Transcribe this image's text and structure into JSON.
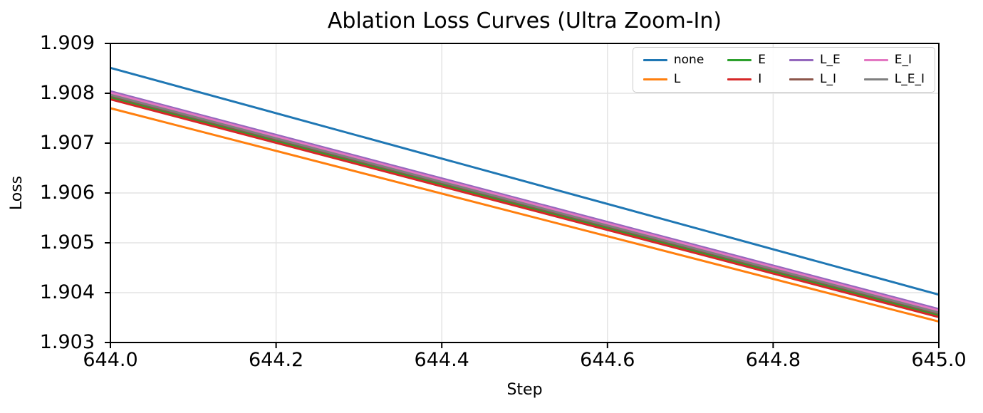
{
  "chart_data": {
    "type": "line",
    "title": "Ablation Loss Curves (Ultra Zoom-In)",
    "xlabel": "Step",
    "ylabel": "Loss",
    "xlim": [
      644.0,
      645.0
    ],
    "ylim": [
      1.903,
      1.909
    ],
    "x_ticks": [
      "644.0",
      "644.2",
      "644.4",
      "644.6",
      "644.8",
      "645.0"
    ],
    "y_ticks": [
      "1.903",
      "1.904",
      "1.905",
      "1.906",
      "1.907",
      "1.908",
      "1.909"
    ],
    "grid": true,
    "grid_color": "#e4e4e4",
    "spine_color": "#000000",
    "legend_position": "upper right",
    "legend_ncol": 4,
    "x": [
      644.0,
      645.0
    ],
    "series": [
      {
        "name": "none",
        "color": "#1f77b4",
        "values": [
          1.90851,
          1.90396
        ]
      },
      {
        "name": "L",
        "color": "#ff7f0e",
        "values": [
          1.9077,
          1.90342
        ]
      },
      {
        "name": "E",
        "color": "#2ca02c",
        "values": [
          1.90792,
          1.90355
        ]
      },
      {
        "name": "I",
        "color": "#d62728",
        "values": [
          1.90788,
          1.90351
        ]
      },
      {
        "name": "L_E",
        "color": "#9467bd",
        "values": [
          1.90804,
          1.90367
        ]
      },
      {
        "name": "L_I",
        "color": "#8c564b",
        "values": [
          1.90795,
          1.90358
        ]
      },
      {
        "name": "E_I",
        "color": "#e377c2",
        "values": [
          1.90801,
          1.90364
        ]
      },
      {
        "name": "L_E_I",
        "color": "#7f7f7f",
        "values": [
          1.90797,
          1.9036
        ]
      }
    ]
  }
}
